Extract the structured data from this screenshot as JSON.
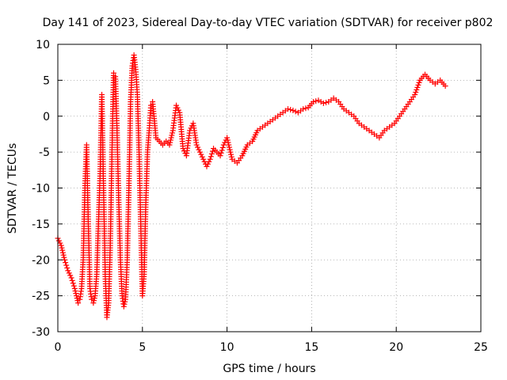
{
  "chart_data": {
    "type": "scatter",
    "title": "Day 141 of 2023, Sidereal Day-to-day VTEC variation (SDTVAR) for receiver p802",
    "xlabel": "GPS time / hours",
    "ylabel": "SDTVAR / TECUs",
    "xlim": [
      0,
      25
    ],
    "ylim": [
      -30,
      10
    ],
    "x_ticks": [
      0,
      5,
      10,
      15,
      20,
      25
    ],
    "y_ticks": [
      -30,
      -25,
      -20,
      -15,
      -10,
      -5,
      0,
      5,
      10
    ],
    "grid": true,
    "marker": "+",
    "color": "#ff0000",
    "series": [
      {
        "name": "SDTVAR",
        "x": [
          0.0,
          0.2,
          0.4,
          0.6,
          0.8,
          1.0,
          1.1,
          1.2,
          1.3,
          1.4,
          1.5,
          1.6,
          1.7,
          1.8,
          1.9,
          2.0,
          2.1,
          2.2,
          2.3,
          2.4,
          2.5,
          2.6,
          2.7,
          2.8,
          2.9,
          3.0,
          3.1,
          3.2,
          3.3,
          3.4,
          3.5,
          3.6,
          3.7,
          3.8,
          3.9,
          4.0,
          4.1,
          4.2,
          4.3,
          4.4,
          4.5,
          4.6,
          4.7,
          4.8,
          4.9,
          5.0,
          5.1,
          5.2,
          5.3,
          5.4,
          5.5,
          5.6,
          5.8,
          6.0,
          6.2,
          6.4,
          6.6,
          6.8,
          7.0,
          7.2,
          7.4,
          7.6,
          7.8,
          8.0,
          8.2,
          8.4,
          8.6,
          8.8,
          9.0,
          9.2,
          9.4,
          9.6,
          9.8,
          10.0,
          10.3,
          10.6,
          10.9,
          11.2,
          11.5,
          11.8,
          12.1,
          12.4,
          12.7,
          13.0,
          13.3,
          13.6,
          13.9,
          14.2,
          14.5,
          14.8,
          15.1,
          15.4,
          15.7,
          16.0,
          16.3,
          16.6,
          16.9,
          17.2,
          17.5,
          17.8,
          18.1,
          18.4,
          18.7,
          19.0,
          19.3,
          19.6,
          19.9,
          20.2,
          20.5,
          20.8,
          21.1,
          21.4,
          21.7,
          22.0,
          22.3,
          22.6,
          22.9
        ],
        "y": [
          -17.0,
          -18.0,
          -20.0,
          -21.5,
          -22.5,
          -24.0,
          -25.0,
          -26.0,
          -25.5,
          -24.0,
          -20.0,
          -10.0,
          -4.0,
          -15.0,
          -24.0,
          -25.5,
          -26.0,
          -25.0,
          -22.0,
          -15.0,
          -8.0,
          3.0,
          -10.0,
          -22.0,
          -28.0,
          -26.0,
          -18.0,
          -5.0,
          6.0,
          5.5,
          -2.0,
          -12.0,
          -20.0,
          -25.0,
          -26.5,
          -25.5,
          -20.0,
          -10.0,
          2.0,
          7.0,
          8.5,
          6.5,
          3.0,
          -5.0,
          -15.0,
          -25.0,
          -22.0,
          -12.0,
          -5.0,
          -2.0,
          1.5,
          2.0,
          -3.0,
          -3.5,
          -4.0,
          -3.5,
          -4.0,
          -2.0,
          1.5,
          0.5,
          -4.5,
          -5.5,
          -2.0,
          -1.0,
          -4.0,
          -5.0,
          -6.0,
          -7.0,
          -6.0,
          -4.5,
          -5.0,
          -5.5,
          -4.0,
          -3.0,
          -6.0,
          -6.5,
          -5.5,
          -4.0,
          -3.5,
          -2.0,
          -1.5,
          -1.0,
          -0.5,
          0.0,
          0.5,
          1.0,
          0.8,
          0.5,
          1.0,
          1.2,
          2.0,
          2.2,
          1.8,
          2.0,
          2.5,
          2.0,
          1.0,
          0.5,
          0.0,
          -1.0,
          -1.5,
          -2.0,
          -2.5,
          -3.0,
          -2.0,
          -1.5,
          -1.0,
          0.0,
          1.0,
          2.0,
          3.0,
          5.0,
          5.8,
          5.0,
          4.5,
          5.0,
          4.2
        ]
      }
    ]
  }
}
